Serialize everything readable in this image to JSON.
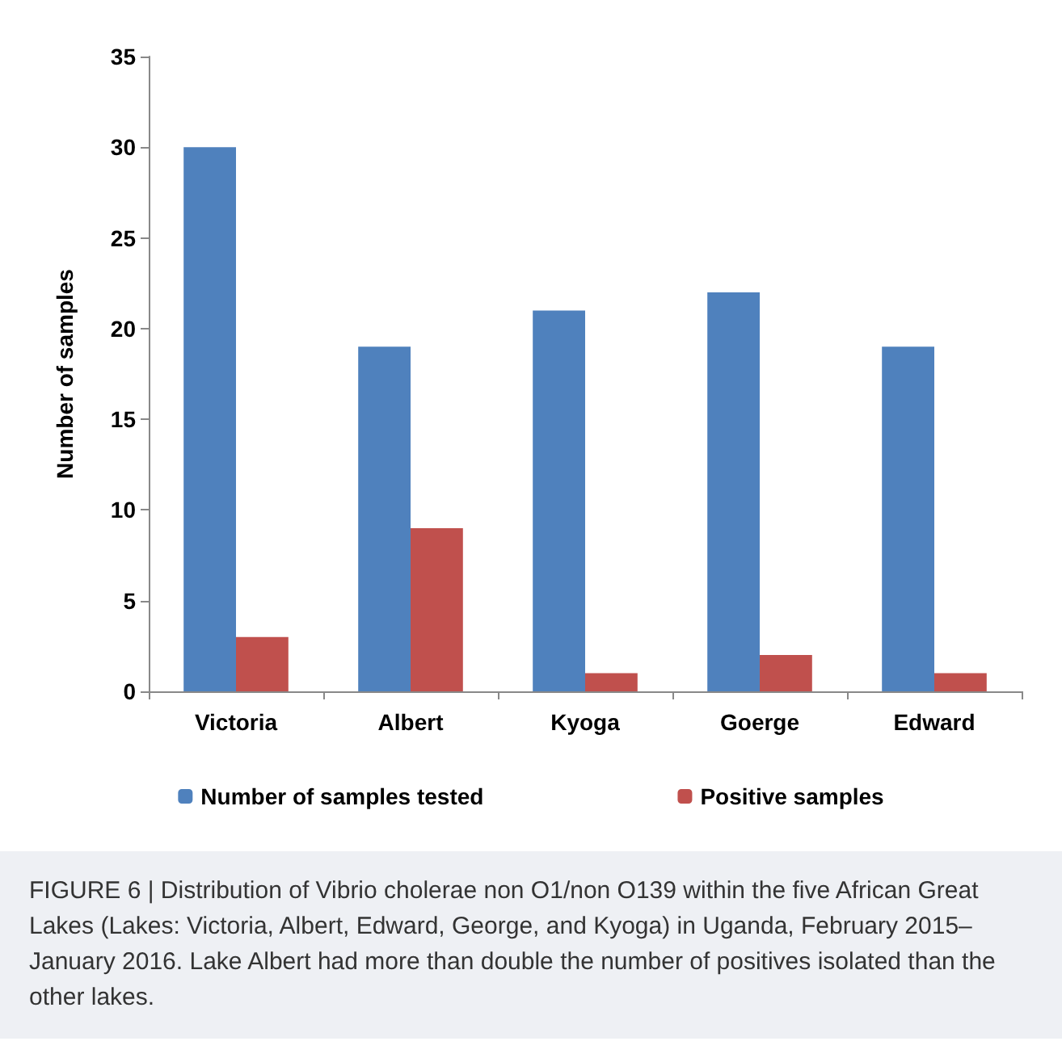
{
  "chart_data": {
    "type": "bar",
    "ylabel": "Number of samples",
    "categories": [
      "Victoria",
      "Albert",
      "Kyoga",
      "Goerge",
      "Edward"
    ],
    "series": [
      {
        "name": "Number of samples tested",
        "color": "#4f81bd",
        "values": [
          30,
          19,
          21,
          22,
          19
        ]
      },
      {
        "name": "Positive samples",
        "color": "#c0504d",
        "values": [
          3,
          9,
          1,
          2,
          1
        ]
      }
    ],
    "ylim": [
      0,
      35
    ],
    "yticks": [
      0,
      5,
      10,
      15,
      20,
      25,
      30,
      35
    ],
    "grid": false,
    "legend": "bottom",
    "annotations": [
      "FIGURE 6 | Distribution of Vibrio cholerae non O1/non O139 within the five African Great Lakes (Lakes: Victoria, Albert, Edward, George, and Kyoga) in Uganda, February 2015–January 2016. Lake Albert had more than double the number of positives isolated than the other lakes."
    ]
  }
}
